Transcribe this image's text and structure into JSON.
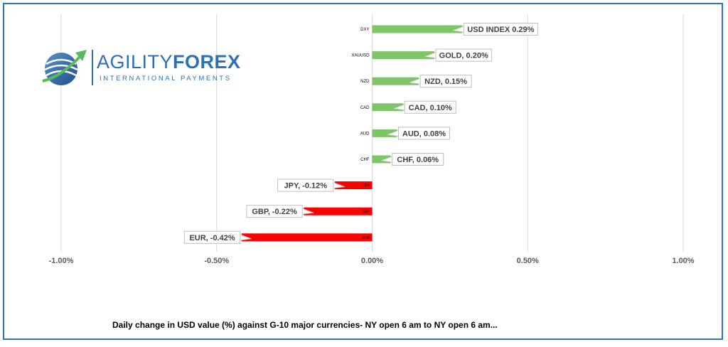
{
  "logo": {
    "word_part1": "AGILITY",
    "word_part2": "FOREX",
    "tagline": "INTERNATIONAL PAYMENTS",
    "brand_color": "#2f6fb3",
    "accent_color": "#5cb85c"
  },
  "caption": "Daily change in  USD value (%)  against  G-10 major currencies- NY open 6 am to NY open 6 am...",
  "chart_data": {
    "type": "bar",
    "orientation": "horizontal",
    "categories": [
      "DXY",
      "XAUUSD",
      "NZD",
      "CAD",
      "AUD",
      "CHF",
      "JPY",
      "GBP",
      "EUR"
    ],
    "values": [
      0.29,
      0.2,
      0.15,
      0.1,
      0.08,
      0.06,
      -0.12,
      -0.22,
      -0.42
    ],
    "data_labels": [
      "USD INDEX 0.29%",
      "GOLD, 0.20%",
      "NZD, 0.15%",
      "CAD, 0.10%",
      "AUD, 0.08%",
      "CHF, 0.06%",
      "JPY, -0.12%",
      "GBP, -0.22%",
      "EUR, -0.42%"
    ],
    "x_ticks": [
      -1.0,
      -0.5,
      0.0,
      0.5,
      1.0
    ],
    "x_tick_labels": [
      "-1.00%",
      "-0.50%",
      "0.00%",
      "0.50%",
      "1.00%"
    ],
    "xlim": [
      -1.0,
      1.0
    ],
    "grid": "vertical",
    "positive_color": "#7dc566",
    "negative_color": "#ff0000"
  }
}
